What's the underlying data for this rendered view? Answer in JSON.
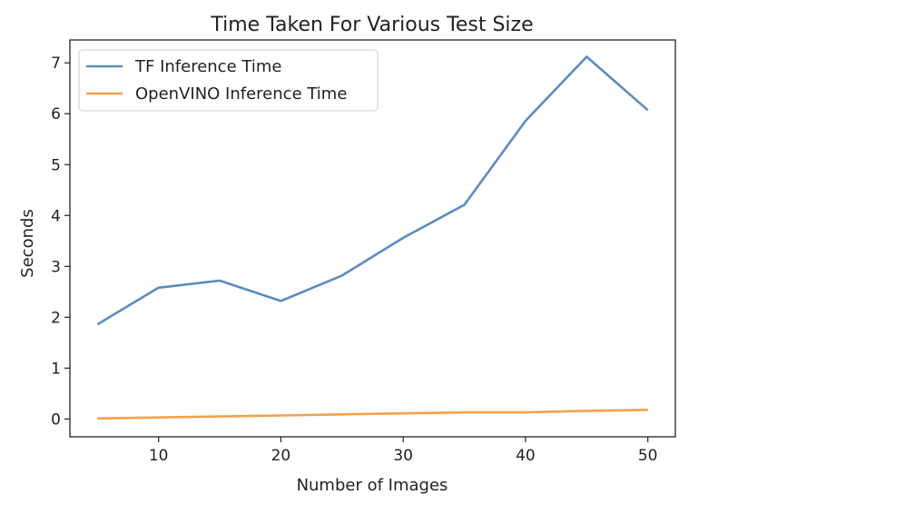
{
  "chart_data": {
    "type": "line",
    "title": "Time Taken For Various Test Size",
    "xlabel": "Number of Images",
    "ylabel": "Seconds",
    "x": [
      5,
      10,
      15,
      20,
      25,
      30,
      35,
      40,
      45,
      50
    ],
    "xlim": [
      2.75,
      52.25
    ],
    "ylim": [
      -0.35,
      7.45
    ],
    "xticks": [
      "10",
      "20",
      "30",
      "40",
      "50"
    ],
    "yticks": [
      "0",
      "1",
      "2",
      "3",
      "4",
      "5",
      "6",
      "7"
    ],
    "grid": false,
    "legend_position": "upper-left",
    "series": [
      {
        "name": "TF Inference Time",
        "color": "#5b8cc0",
        "values": [
          1.86,
          2.58,
          2.72,
          2.32,
          2.82,
          3.56,
          4.21,
          5.86,
          7.12,
          6.07
        ]
      },
      {
        "name": "OpenVINO Inference Time",
        "color": "#f4a14c",
        "values": [
          0.01,
          0.03,
          0.05,
          0.07,
          0.09,
          0.11,
          0.13,
          0.13,
          0.16,
          0.18
        ]
      }
    ]
  }
}
